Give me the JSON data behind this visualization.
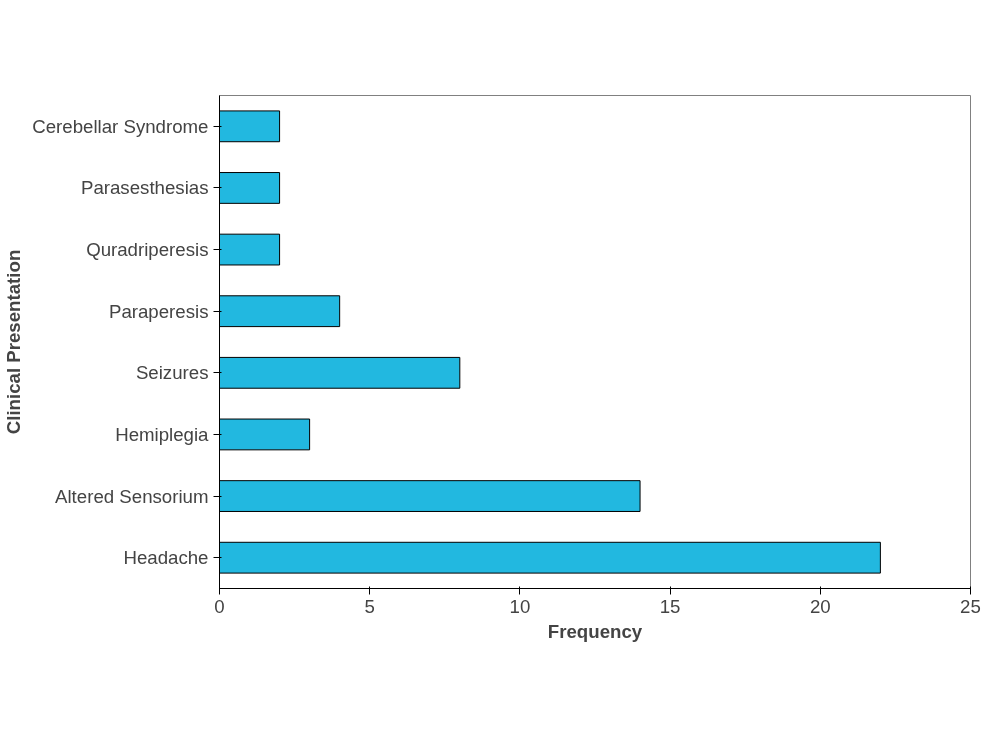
{
  "chart_data": {
    "type": "bar",
    "orientation": "horizontal",
    "xlabel": "Frequency",
    "ylabel": "Clinical Presentation",
    "categories": [
      "Cerebellar Syndrome",
      "Parasesthesias",
      "Quradriperesis",
      "Paraperesis",
      "Seizures",
      "Hemiplegia",
      "Altered Sensorium",
      "Headache"
    ],
    "values": [
      2,
      2,
      2,
      4,
      8,
      3,
      14,
      22
    ],
    "color": "#22b8e0",
    "xlim": [
      0,
      25
    ],
    "xticks": [
      0,
      5,
      10,
      15,
      20,
      25
    ],
    "grid": false
  }
}
